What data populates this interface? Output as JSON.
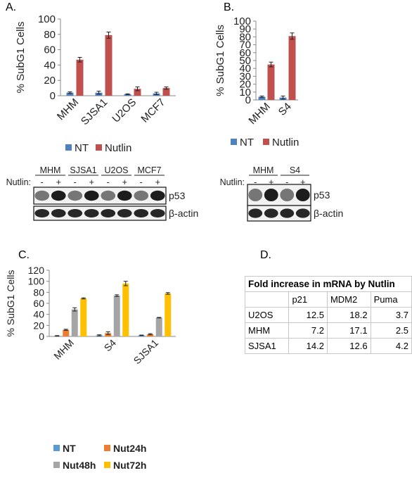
{
  "panels": {
    "a": "A.",
    "b": "B.",
    "c": "C.",
    "d": "D."
  },
  "colors": {
    "nt": "#4f81bd",
    "nutlin": "#c0504d",
    "nt_c": "#5b9bd5",
    "nut24h": "#ed7d31",
    "nut48h": "#a5a5a5",
    "nut72h": "#ffc000"
  },
  "chart_data": [
    {
      "type": "bar",
      "panel": "A",
      "ylabel": "% SubG1 Cells",
      "ylim": [
        0,
        100
      ],
      "yticks": [
        0,
        20,
        40,
        60,
        80,
        100
      ],
      "categories": [
        "MHM",
        "SJSA1",
        "U2OS",
        "MCF7"
      ],
      "series": [
        {
          "name": "NT",
          "values": [
            4,
            4,
            2,
            3
          ],
          "errors": [
            1,
            2,
            0.5,
            1.5
          ]
        },
        {
          "name": "Nutlin",
          "values": [
            47,
            79,
            9,
            10
          ],
          "errors": [
            3,
            4,
            2.5,
            1.5
          ]
        }
      ],
      "legend": "bottom"
    },
    {
      "type": "bar",
      "panel": "B",
      "ylabel": "% SubG1 Cells",
      "ylim": [
        0,
        100
      ],
      "yticks": [
        0,
        10,
        20,
        30,
        40,
        50,
        60,
        70,
        80,
        90,
        100
      ],
      "categories": [
        "MHM",
        "S4"
      ],
      "series": [
        {
          "name": "NT",
          "values": [
            4,
            3
          ],
          "errors": [
            1,
            2
          ]
        },
        {
          "name": "Nutlin",
          "values": [
            45,
            81
          ],
          "errors": [
            3,
            4
          ]
        }
      ],
      "legend": "bottom"
    },
    {
      "type": "bar",
      "panel": "C",
      "ylabel": "% SubG1 Cells",
      "ylim": [
        0,
        120
      ],
      "yticks": [
        0,
        20,
        40,
        60,
        80,
        100,
        120
      ],
      "categories": [
        "MHM",
        "S4",
        "SJSA1"
      ],
      "series": [
        {
          "name": "NT",
          "values": [
            1,
            2,
            2
          ],
          "errors": [
            0.5,
            1,
            0.5
          ]
        },
        {
          "name": "Nut24h",
          "values": [
            12,
            6,
            4
          ],
          "errors": [
            1,
            2.5,
            1
          ]
        },
        {
          "name": "Nut48h",
          "values": [
            49,
            74,
            34
          ],
          "errors": [
            3,
            1.5,
            0.5
          ]
        },
        {
          "name": "Nut72h",
          "values": [
            69,
            96,
            78
          ],
          "errors": [
            1,
            4,
            1.5
          ]
        }
      ],
      "legend": "bottom"
    },
    {
      "type": "table",
      "panel": "D",
      "title": "Fold increase in mRNA by Nutlin",
      "columns": [
        "",
        "p21",
        "MDM2",
        "Puma"
      ],
      "rows": [
        [
          "U2OS",
          "12.5",
          "18.2",
          "3.7"
        ],
        [
          "MHM",
          "7.2",
          "17.1",
          "2.5"
        ],
        [
          "SJSA1",
          "14.2",
          "12.6",
          "4.2"
        ]
      ]
    }
  ],
  "blot_a": {
    "groups": [
      "MHM",
      "SJSA1",
      "U2OS",
      "MCF7"
    ],
    "treatment_label": "Nutlin:",
    "signs": [
      "-",
      "+",
      "-",
      "+",
      "-",
      "+",
      "-",
      "+"
    ],
    "bands": [
      "p53",
      "β-actin"
    ]
  },
  "blot_b": {
    "groups": [
      "MHM",
      "S4"
    ],
    "treatment_label": "Nutlin:",
    "signs": [
      "-",
      "+",
      "-",
      "+"
    ],
    "bands": [
      "p53",
      "β-actin"
    ]
  }
}
